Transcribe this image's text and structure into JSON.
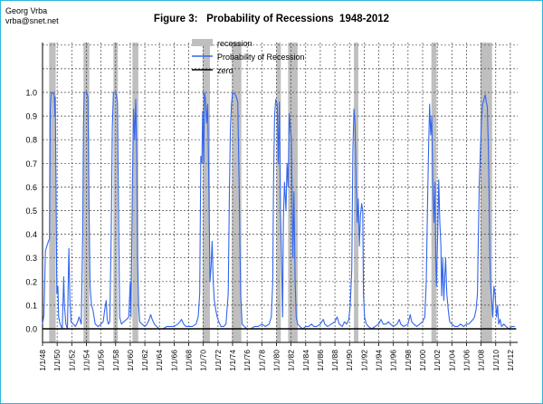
{
  "author": {
    "name": "Georg Vrba",
    "email": "vrba@snet.net"
  },
  "chart_data": {
    "type": "line",
    "title": "Figure 3:   Probability of Recessions  1948-2012",
    "xlabel": "",
    "ylabel": "",
    "ylim": [
      0,
      1.1
    ],
    "xlim": [
      1948.0,
      2013.0
    ],
    "yticks": [
      "0.0",
      "0.1",
      "0.2",
      "0.3",
      "0.4",
      "0.5",
      "0.6",
      "0.7",
      "0.8",
      "0.9",
      "1.0"
    ],
    "xticks": [
      "1/1/48",
      "1/1/50",
      "1/1/52",
      "1/1/54",
      "1/1/56",
      "1/1/58",
      "1/1/60",
      "1/1/62",
      "1/1/64",
      "1/1/66",
      "1/1/68",
      "1/1/70",
      "1/1/72",
      "1/1/74",
      "1/1/76",
      "1/1/78",
      "1/1/80",
      "1/1/82",
      "1/1/84",
      "1/1/86",
      "1/1/88",
      "1/1/90",
      "1/1/92",
      "1/1/94",
      "1/1/96",
      "1/1/98",
      "1/1/00",
      "1/1/02",
      "1/1/04",
      "1/1/06",
      "1/1/08",
      "1/1/10",
      "1/1/12"
    ],
    "grid": true,
    "legend_position": "top-center",
    "legend": [
      {
        "label": "recession",
        "kind": "band",
        "color": "#bfbfbf"
      },
      {
        "label": "Probability of Recession",
        "kind": "line",
        "color": "#3366ee"
      },
      {
        "label": "zero",
        "kind": "line",
        "color": "#000000"
      }
    ],
    "recessions": [
      [
        1948.9,
        1949.8
      ],
      [
        1953.6,
        1954.4
      ],
      [
        1957.7,
        1958.3
      ],
      [
        1960.3,
        1961.1
      ],
      [
        1969.9,
        1970.9
      ],
      [
        1973.9,
        1975.2
      ],
      [
        1980.0,
        1980.6
      ],
      [
        1981.6,
        1982.9
      ],
      [
        1990.6,
        1991.2
      ],
      [
        2001.2,
        2001.9
      ],
      [
        2007.9,
        2009.5
      ]
    ],
    "series": [
      {
        "name": "Probability of Recession",
        "color": "#3366ee",
        "points": [
          [
            1948.0,
            0.02
          ],
          [
            1948.2,
            0.06
          ],
          [
            1948.4,
            0.33
          ],
          [
            1948.6,
            0.35
          ],
          [
            1948.8,
            0.37
          ],
          [
            1948.95,
            0.38
          ],
          [
            1949.05,
            0.92
          ],
          [
            1949.15,
            0.99
          ],
          [
            1949.35,
            1.0
          ],
          [
            1949.6,
            0.99
          ],
          [
            1949.7,
            0.9
          ],
          [
            1949.75,
            0.98
          ],
          [
            1949.85,
            0.6
          ],
          [
            1949.95,
            0.15
          ],
          [
            1950.1,
            0.18
          ],
          [
            1950.2,
            0.05
          ],
          [
            1950.4,
            0.02
          ],
          [
            1950.7,
            0.0
          ],
          [
            1950.9,
            0.22
          ],
          [
            1951.0,
            0.1
          ],
          [
            1951.2,
            0.02
          ],
          [
            1951.4,
            0.0
          ],
          [
            1951.6,
            0.34
          ],
          [
            1951.75,
            0.12
          ],
          [
            1951.9,
            0.03
          ],
          [
            1952.2,
            0.02
          ],
          [
            1952.5,
            0.01
          ],
          [
            1952.8,
            0.03
          ],
          [
            1953.0,
            0.05
          ],
          [
            1953.3,
            0.02
          ],
          [
            1953.5,
            0.4
          ],
          [
            1953.6,
            0.85
          ],
          [
            1953.7,
            1.0
          ],
          [
            1954.0,
            1.0
          ],
          [
            1954.2,
            0.98
          ],
          [
            1954.35,
            0.55
          ],
          [
            1954.5,
            0.18
          ],
          [
            1954.7,
            0.1
          ],
          [
            1954.9,
            0.08
          ],
          [
            1955.2,
            0.02
          ],
          [
            1955.6,
            0.01
          ],
          [
            1956.0,
            0.02
          ],
          [
            1956.3,
            0.03
          ],
          [
            1956.5,
            0.08
          ],
          [
            1956.7,
            0.12
          ],
          [
            1956.85,
            0.04
          ],
          [
            1957.0,
            0.02
          ],
          [
            1957.2,
            0.03
          ],
          [
            1957.4,
            0.4
          ],
          [
            1957.55,
            0.85
          ],
          [
            1957.7,
            1.0
          ],
          [
            1958.0,
            1.0
          ],
          [
            1958.25,
            0.96
          ],
          [
            1958.4,
            0.5
          ],
          [
            1958.55,
            0.05
          ],
          [
            1958.8,
            0.02
          ],
          [
            1959.1,
            0.03
          ],
          [
            1959.5,
            0.04
          ],
          [
            1959.8,
            0.05
          ],
          [
            1960.0,
            0.2
          ],
          [
            1960.1,
            0.05
          ],
          [
            1960.3,
            0.6
          ],
          [
            1960.45,
            0.93
          ],
          [
            1960.6,
            0.8
          ],
          [
            1960.75,
            0.97
          ],
          [
            1960.9,
            0.7
          ],
          [
            1961.0,
            0.3
          ],
          [
            1961.15,
            0.1
          ],
          [
            1961.3,
            0.03
          ],
          [
            1961.6,
            0.02
          ],
          [
            1962.0,
            0.01
          ],
          [
            1962.3,
            0.02
          ],
          [
            1962.6,
            0.04
          ],
          [
            1962.8,
            0.06
          ],
          [
            1963.0,
            0.04
          ],
          [
            1963.3,
            0.02
          ],
          [
            1963.6,
            0.01
          ],
          [
            1964.0,
            0.0
          ],
          [
            1964.5,
            0.0
          ],
          [
            1965.0,
            0.01
          ],
          [
            1965.5,
            0.01
          ],
          [
            1966.0,
            0.01
          ],
          [
            1966.5,
            0.02
          ],
          [
            1966.8,
            0.03
          ],
          [
            1967.0,
            0.04
          ],
          [
            1967.3,
            0.02
          ],
          [
            1967.6,
            0.01
          ],
          [
            1968.0,
            0.01
          ],
          [
            1968.5,
            0.01
          ],
          [
            1969.0,
            0.02
          ],
          [
            1969.3,
            0.05
          ],
          [
            1969.5,
            0.15
          ],
          [
            1969.65,
            0.73
          ],
          [
            1969.8,
            0.7
          ],
          [
            1969.9,
            0.92
          ],
          [
            1970.05,
            0.7
          ],
          [
            1970.15,
            1.0
          ],
          [
            1970.3,
            0.97
          ],
          [
            1970.45,
            0.87
          ],
          [
            1970.6,
            0.95
          ],
          [
            1970.75,
            0.6
          ],
          [
            1970.9,
            0.2
          ],
          [
            1971.05,
            0.26
          ],
          [
            1971.2,
            0.37
          ],
          [
            1971.35,
            0.2
          ],
          [
            1971.5,
            0.12
          ],
          [
            1971.7,
            0.08
          ],
          [
            1971.9,
            0.05
          ],
          [
            1972.1,
            0.03
          ],
          [
            1972.4,
            0.01
          ],
          [
            1972.8,
            0.01
          ],
          [
            1973.1,
            0.02
          ],
          [
            1973.4,
            0.15
          ],
          [
            1973.55,
            0.55
          ],
          [
            1973.7,
            0.85
          ],
          [
            1973.85,
            0.95
          ],
          [
            1974.0,
            1.0
          ],
          [
            1974.4,
            0.99
          ],
          [
            1974.7,
            0.96
          ],
          [
            1974.9,
            0.6
          ],
          [
            1975.0,
            0.35
          ],
          [
            1975.1,
            0.15
          ],
          [
            1975.3,
            0.02
          ],
          [
            1975.6,
            0.01
          ],
          [
            1976.0,
            0.0
          ],
          [
            1976.5,
            0.0
          ],
          [
            1977.0,
            0.01
          ],
          [
            1977.5,
            0.01
          ],
          [
            1978.0,
            0.02
          ],
          [
            1978.5,
            0.01
          ],
          [
            1979.0,
            0.02
          ],
          [
            1979.3,
            0.05
          ],
          [
            1979.5,
            0.2
          ],
          [
            1979.6,
            0.6
          ],
          [
            1979.75,
            0.9
          ],
          [
            1979.9,
            0.97
          ],
          [
            1980.1,
            0.95
          ],
          [
            1980.25,
            0.7
          ],
          [
            1980.4,
            0.96
          ],
          [
            1980.55,
            0.5
          ],
          [
            1980.7,
            0.3
          ],
          [
            1980.85,
            0.05
          ],
          [
            1980.95,
            0.45
          ],
          [
            1981.1,
            0.62
          ],
          [
            1981.3,
            0.5
          ],
          [
            1981.45,
            0.7
          ],
          [
            1981.6,
            0.6
          ],
          [
            1981.75,
            0.91
          ],
          [
            1981.9,
            0.85
          ],
          [
            1982.05,
            0.8
          ],
          [
            1982.25,
            0.3
          ],
          [
            1982.4,
            0.58
          ],
          [
            1982.55,
            0.2
          ],
          [
            1982.7,
            0.05
          ],
          [
            1982.9,
            0.02
          ],
          [
            1983.2,
            0.01
          ],
          [
            1983.6,
            0.0
          ],
          [
            1984.0,
            0.01
          ],
          [
            1984.4,
            0.01
          ],
          [
            1984.8,
            0.02
          ],
          [
            1985.1,
            0.01
          ],
          [
            1985.5,
            0.01
          ],
          [
            1986.0,
            0.02
          ],
          [
            1986.4,
            0.04
          ],
          [
            1986.6,
            0.02
          ],
          [
            1987.0,
            0.01
          ],
          [
            1987.5,
            0.02
          ],
          [
            1988.0,
            0.03
          ],
          [
            1988.3,
            0.05
          ],
          [
            1988.6,
            0.02
          ],
          [
            1989.0,
            0.01
          ],
          [
            1989.3,
            0.03
          ],
          [
            1989.6,
            0.02
          ],
          [
            1989.9,
            0.04
          ],
          [
            1990.1,
            0.1
          ],
          [
            1990.3,
            0.25
          ],
          [
            1990.45,
            0.75
          ],
          [
            1990.6,
            0.93
          ],
          [
            1990.75,
            0.87
          ],
          [
            1990.9,
            0.6
          ],
          [
            1991.05,
            0.45
          ],
          [
            1991.2,
            0.55
          ],
          [
            1991.35,
            0.35
          ],
          [
            1991.5,
            0.48
          ],
          [
            1991.65,
            0.53
          ],
          [
            1991.8,
            0.5
          ],
          [
            1991.9,
            0.15
          ],
          [
            1992.05,
            0.05
          ],
          [
            1992.3,
            0.02
          ],
          [
            1992.6,
            0.01
          ],
          [
            1993.0,
            0.0
          ],
          [
            1993.5,
            0.01
          ],
          [
            1994.0,
            0.02
          ],
          [
            1994.3,
            0.04
          ],
          [
            1994.6,
            0.02
          ],
          [
            1995.0,
            0.02
          ],
          [
            1995.3,
            0.03
          ],
          [
            1995.6,
            0.02
          ],
          [
            1996.0,
            0.01
          ],
          [
            1996.5,
            0.02
          ],
          [
            1996.8,
            0.04
          ],
          [
            1997.0,
            0.02
          ],
          [
            1997.4,
            0.01
          ],
          [
            1998.0,
            0.02
          ],
          [
            1998.3,
            0.06
          ],
          [
            1998.5,
            0.03
          ],
          [
            1998.8,
            0.02
          ],
          [
            1999.2,
            0.01
          ],
          [
            1999.6,
            0.02
          ],
          [
            2000.0,
            0.03
          ],
          [
            2000.3,
            0.05
          ],
          [
            2000.5,
            0.2
          ],
          [
            2000.65,
            0.5
          ],
          [
            2000.8,
            0.75
          ],
          [
            2000.95,
            0.95
          ],
          [
            2001.1,
            0.82
          ],
          [
            2001.25,
            0.9
          ],
          [
            2001.4,
            0.6
          ],
          [
            2001.55,
            0.45
          ],
          [
            2001.7,
            0.62
          ],
          [
            2001.8,
            0.3
          ],
          [
            2001.9,
            0.18
          ],
          [
            2002.05,
            0.4
          ],
          [
            2002.2,
            0.63
          ],
          [
            2002.35,
            0.45
          ],
          [
            2002.5,
            0.35
          ],
          [
            2002.6,
            0.14
          ],
          [
            2002.75,
            0.3
          ],
          [
            2002.9,
            0.12
          ],
          [
            2003.0,
            0.2
          ],
          [
            2003.15,
            0.3
          ],
          [
            2003.3,
            0.15
          ],
          [
            2003.5,
            0.08
          ],
          [
            2003.7,
            0.03
          ],
          [
            2004.0,
            0.02
          ],
          [
            2004.4,
            0.01
          ],
          [
            2004.8,
            0.01
          ],
          [
            2005.2,
            0.02
          ],
          [
            2005.6,
            0.01
          ],
          [
            2006.0,
            0.02
          ],
          [
            2006.3,
            0.02
          ],
          [
            2006.6,
            0.03
          ],
          [
            2006.9,
            0.04
          ],
          [
            2007.1,
            0.05
          ],
          [
            2007.3,
            0.08
          ],
          [
            2007.5,
            0.15
          ],
          [
            2007.6,
            0.35
          ],
          [
            2007.75,
            0.62
          ],
          [
            2007.9,
            0.75
          ],
          [
            2008.05,
            0.88
          ],
          [
            2008.2,
            0.95
          ],
          [
            2008.4,
            0.97
          ],
          [
            2008.55,
            0.99
          ],
          [
            2008.7,
            0.96
          ],
          [
            2008.85,
            0.94
          ],
          [
            2009.0,
            0.75
          ],
          [
            2009.1,
            0.55
          ],
          [
            2009.2,
            0.3
          ],
          [
            2009.3,
            0.18
          ],
          [
            2009.45,
            0.12
          ],
          [
            2009.6,
            0.05
          ],
          [
            2009.75,
            0.18
          ],
          [
            2009.9,
            0.15
          ],
          [
            2010.0,
            0.1
          ],
          [
            2010.1,
            0.05
          ],
          [
            2010.25,
            0.1
          ],
          [
            2010.4,
            0.02
          ],
          [
            2010.6,
            0.04
          ],
          [
            2010.8,
            0.01
          ],
          [
            2011.1,
            0.02
          ],
          [
            2011.4,
            0.01
          ],
          [
            2011.8,
            0.0
          ],
          [
            2012.2,
            0.01
          ],
          [
            2012.6,
            0.01
          ]
        ]
      },
      {
        "name": "zero",
        "color": "#000000",
        "points": [
          [
            1948.0,
            0
          ],
          [
            2012.8,
            0
          ]
        ]
      }
    ]
  }
}
